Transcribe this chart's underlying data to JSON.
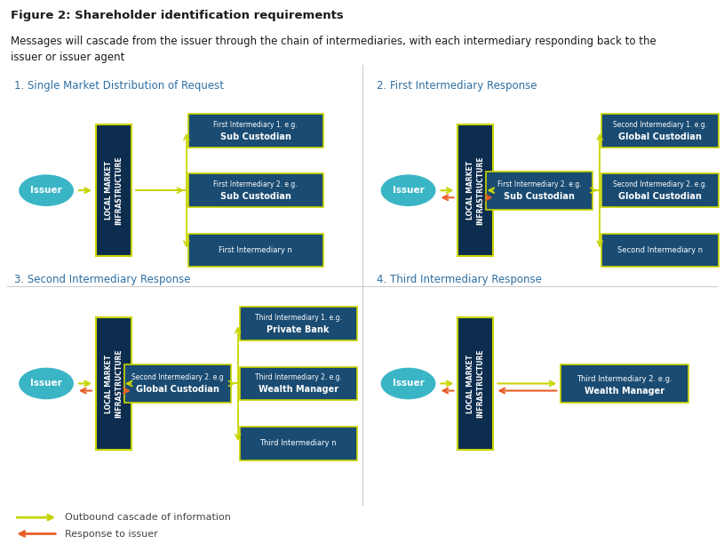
{
  "title": "Figure 2: Shareholder identification requirements",
  "subtitle": "Messages will cascade from the issuer through the chain of intermediaries, with each intermediary responding back to the\nissuer or issuer agent",
  "bg_color": "#ffffff",
  "dark_blue": "#0d2d4e",
  "teal_blue": "#3ab5c6",
  "yellow_green": "#c8d400",
  "orange_red": "#e85d26",
  "box_blue": "#1a4b72",
  "section_title_color": "#2e6fa3",
  "legend_line_color_out": "#c8d400",
  "legend_line_color_in": "#e85d26",
  "panels": [
    {
      "title": "1. Single Market Distribution of Request",
      "issuer_label": "Issuer",
      "lmi_label": "LOCAL MARKET\nINFRASTRUCTURE",
      "intermediary1_label": "First Intermediary 1. e.g.\nSub Custodian",
      "intermediary2_label": "First Intermediary 2. e.g.\nSub Custodian",
      "intermediary3_label": "First Intermediary n",
      "show_second_level": false,
      "show_return_arrow": false,
      "has_middle_intermediary": true
    },
    {
      "title": "2. First Intermediary Response",
      "issuer_label": "Issuer",
      "lmi_label": "LOCAL MARKET\nINFRASTRUCTURE",
      "intermediary1_label": "First Intermediary 2. e.g.\nSub Custodian",
      "second1_label": "Second Intermediary 1. e.g.\nGlobal Custodian",
      "second2_label": "Second Intermediary 2. e.g.\nGlobal Custodian",
      "second3_label": "Second Intermediary n",
      "show_second_level": true,
      "show_return_arrow": true,
      "has_middle_intermediary": false
    },
    {
      "title": "3. Second Intermediary Response",
      "issuer_label": "Issuer",
      "lmi_label": "LOCAL MARKET\nINFRASTRUCTURE",
      "intermediary1_label": "Second Intermediary 2. e.g\nGlobal Custodian",
      "second1_label": "Third Intermediary 1. e.g.\nPrivate Bank",
      "second2_label": "Third Intermediary 2. e.g.\nWealth Manager",
      "second3_label": "Third Intermediary n",
      "show_second_level": true,
      "show_return_arrow": true,
      "has_middle_intermediary": false
    },
    {
      "title": "4. Third Intermediary Response",
      "issuer_label": "Issuer",
      "lmi_label": "LOCAL MARKET\nINFRASTRUCTURE",
      "intermediary1_label": "Third Intermediary 2. e.g.\nWealth Manager",
      "show_second_level": false,
      "show_return_arrow": true,
      "has_middle_intermediary": false,
      "only_return": true
    }
  ]
}
